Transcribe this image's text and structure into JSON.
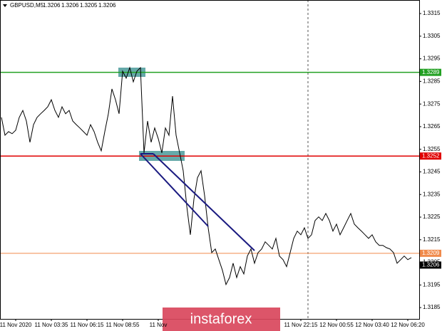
{
  "chart_data": {
    "type": "line",
    "symbol": "GBPUSD,M5",
    "ohlc": [
      1.3206,
      1.3206,
      1.3205,
      1.3206
    ],
    "categories": [
      null,
      null,
      null,
      null,
      "11 Nov 2020",
      null,
      null,
      null,
      null,
      null,
      null,
      null,
      null,
      null,
      "11 Nov 03:35",
      null,
      null,
      null,
      null,
      null,
      null,
      null,
      null,
      null,
      "11 Nov 06:15",
      null,
      null,
      null,
      null,
      null,
      null,
      null,
      null,
      null,
      "11 Nov 08:55",
      null,
      null,
      null,
      null,
      null,
      null,
      null,
      null,
      null,
      "11 Nov",
      null,
      null,
      null,
      null,
      null,
      null,
      null,
      null,
      null,
      null,
      null,
      null,
      null,
      null,
      null,
      null,
      null,
      null,
      null,
      null,
      null,
      null,
      null,
      null,
      null,
      null,
      null,
      null,
      null,
      null,
      null,
      null,
      null,
      null,
      null,
      null,
      null,
      null,
      null,
      "11 Nov 22:15",
      null,
      null,
      null,
      null,
      null,
      null,
      null,
      null,
      null,
      "12 Nov 00:55",
      null,
      null,
      null,
      null,
      null,
      null,
      null,
      null,
      null,
      "12 Nov 03:40",
      null,
      null,
      null,
      null,
      null,
      null,
      null,
      null,
      null,
      "12 Nov 06:20",
      null
    ],
    "values": [
      1.32691,
      1.32612,
      1.32628,
      1.32619,
      1.32634,
      1.32691,
      1.32722,
      1.32675,
      1.32581,
      1.32659,
      1.32691,
      1.32707,
      1.32722,
      1.32738,
      1.32769,
      1.32722,
      1.32691,
      1.32738,
      1.32707,
      1.32722,
      1.32675,
      1.32659,
      1.32644,
      1.32628,
      1.32612,
      1.32659,
      1.32628,
      1.32581,
      1.32543,
      1.32628,
      1.32707,
      1.32817,
      1.32769,
      1.32707,
      1.32895,
      1.32864,
      1.32911,
      1.32848,
      1.32895,
      1.32911,
      1.32534,
      1.32675,
      1.32581,
      1.32644,
      1.32597,
      1.32534,
      1.32644,
      1.32612,
      1.32785,
      1.32612,
      1.32534,
      1.32455,
      1.32298,
      1.32172,
      1.32329,
      1.32424,
      1.32455,
      1.32345,
      1.32203,
      1.32093,
      1.32109,
      1.32062,
      1.32015,
      1.31952,
      1.31983,
      1.32046,
      1.31983,
      1.32031,
      1.31999,
      1.32078,
      1.32109,
      1.32046,
      1.32093,
      1.32109,
      1.32141,
      1.32125,
      1.32109,
      1.32156,
      1.32078,
      1.32062,
      1.32031,
      1.32093,
      1.32156,
      1.32188,
      1.32172,
      1.32203,
      1.32156,
      1.32172,
      1.32235,
      1.32251,
      1.32235,
      1.32266,
      1.32235,
      1.32188,
      1.32219,
      1.32172,
      1.32203,
      1.32235,
      1.32266,
      1.32219,
      1.32203,
      1.32188,
      1.32172,
      1.32156,
      1.32172,
      1.32141,
      1.32125,
      1.32125,
      1.32115,
      1.32109,
      1.32093,
      1.32046,
      1.32062,
      1.32078,
      1.32062,
      1.32071
    ],
    "color": "#000000",
    "ylim": [
      1.318,
      1.3321
    ],
    "yticks": [
      1.3315,
      1.3305,
      1.3295,
      1.3285,
      1.3275,
      1.3265,
      1.3255,
      1.3245,
      1.3235,
      1.3225,
      1.3215,
      1.3205,
      1.3195,
      1.3185
    ],
    "hlines": [
      {
        "value": 1.3289,
        "color": "#22a022"
      },
      {
        "value": 1.3252,
        "color": "#e00000"
      },
      {
        "value": 1.3209,
        "color": "#f08a4b"
      }
    ],
    "last_price": 1.3206,
    "watermark": "instaforex"
  }
}
